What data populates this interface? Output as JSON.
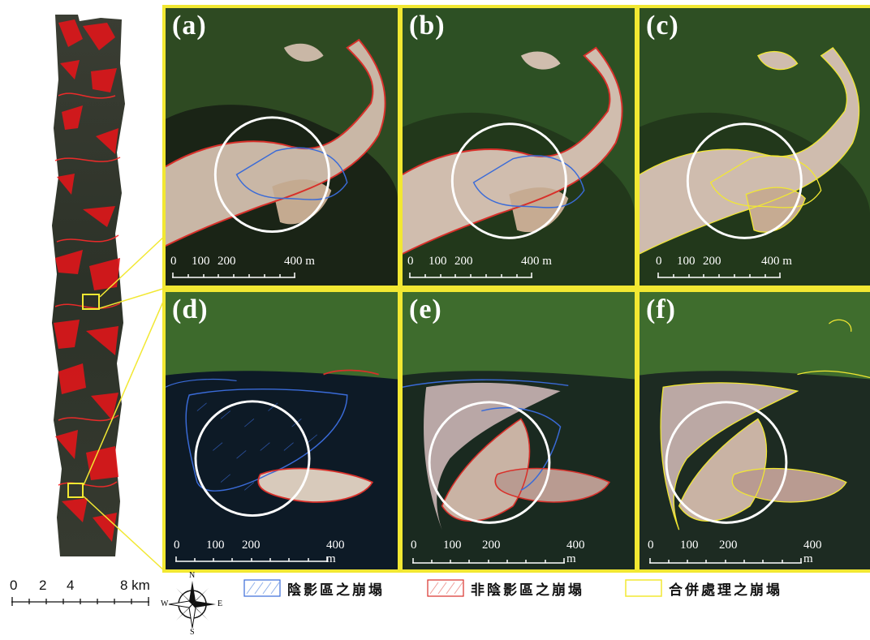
{
  "panels": [
    {
      "id": "a",
      "label": "(a)",
      "scale": {
        "ticks": [
          "0",
          "100",
          "200",
          "400 m"
        ]
      },
      "overlay": "both"
    },
    {
      "id": "b",
      "label": "(b)",
      "scale": {
        "ticks": [
          "0",
          "100",
          "200",
          "400 m"
        ]
      },
      "overlay": "both"
    },
    {
      "id": "c",
      "label": "(c)",
      "scale": {
        "ticks": [
          "0",
          "100",
          "200",
          "400 m"
        ]
      },
      "overlay": "merged"
    },
    {
      "id": "d",
      "label": "(d)",
      "scale": {
        "ticks": [
          "0",
          "100",
          "200",
          "400 m"
        ]
      },
      "overlay": "both"
    },
    {
      "id": "e",
      "label": "(e)",
      "scale": {
        "ticks": [
          "0",
          "100",
          "200",
          "400 m"
        ]
      },
      "overlay": "both"
    },
    {
      "id": "f",
      "label": "(f)",
      "scale": {
        "ticks": [
          "0",
          "100",
          "200",
          "400 m"
        ]
      },
      "overlay": "merged"
    }
  ],
  "overview": {
    "scale_ticks": [
      "0",
      "2",
      "4",
      "8 km"
    ]
  },
  "compass": {
    "n": "N",
    "s": "S",
    "e": "E",
    "w": "W"
  },
  "legend": [
    {
      "label": "陰影區之崩塌",
      "color": "#3a6bd8",
      "kind": "hatch"
    },
    {
      "label": "非陰影區之崩塌",
      "color": "#d8302a",
      "kind": "hatch"
    },
    {
      "label": "合併處理之崩塌",
      "color": "#f2e832",
      "kind": "outline"
    }
  ],
  "colors": {
    "frame": "#f2e832",
    "shadow_landslide": "#3a6bd8",
    "nonshadow_landslide": "#d8302a",
    "merged_landslide": "#f2e832"
  }
}
